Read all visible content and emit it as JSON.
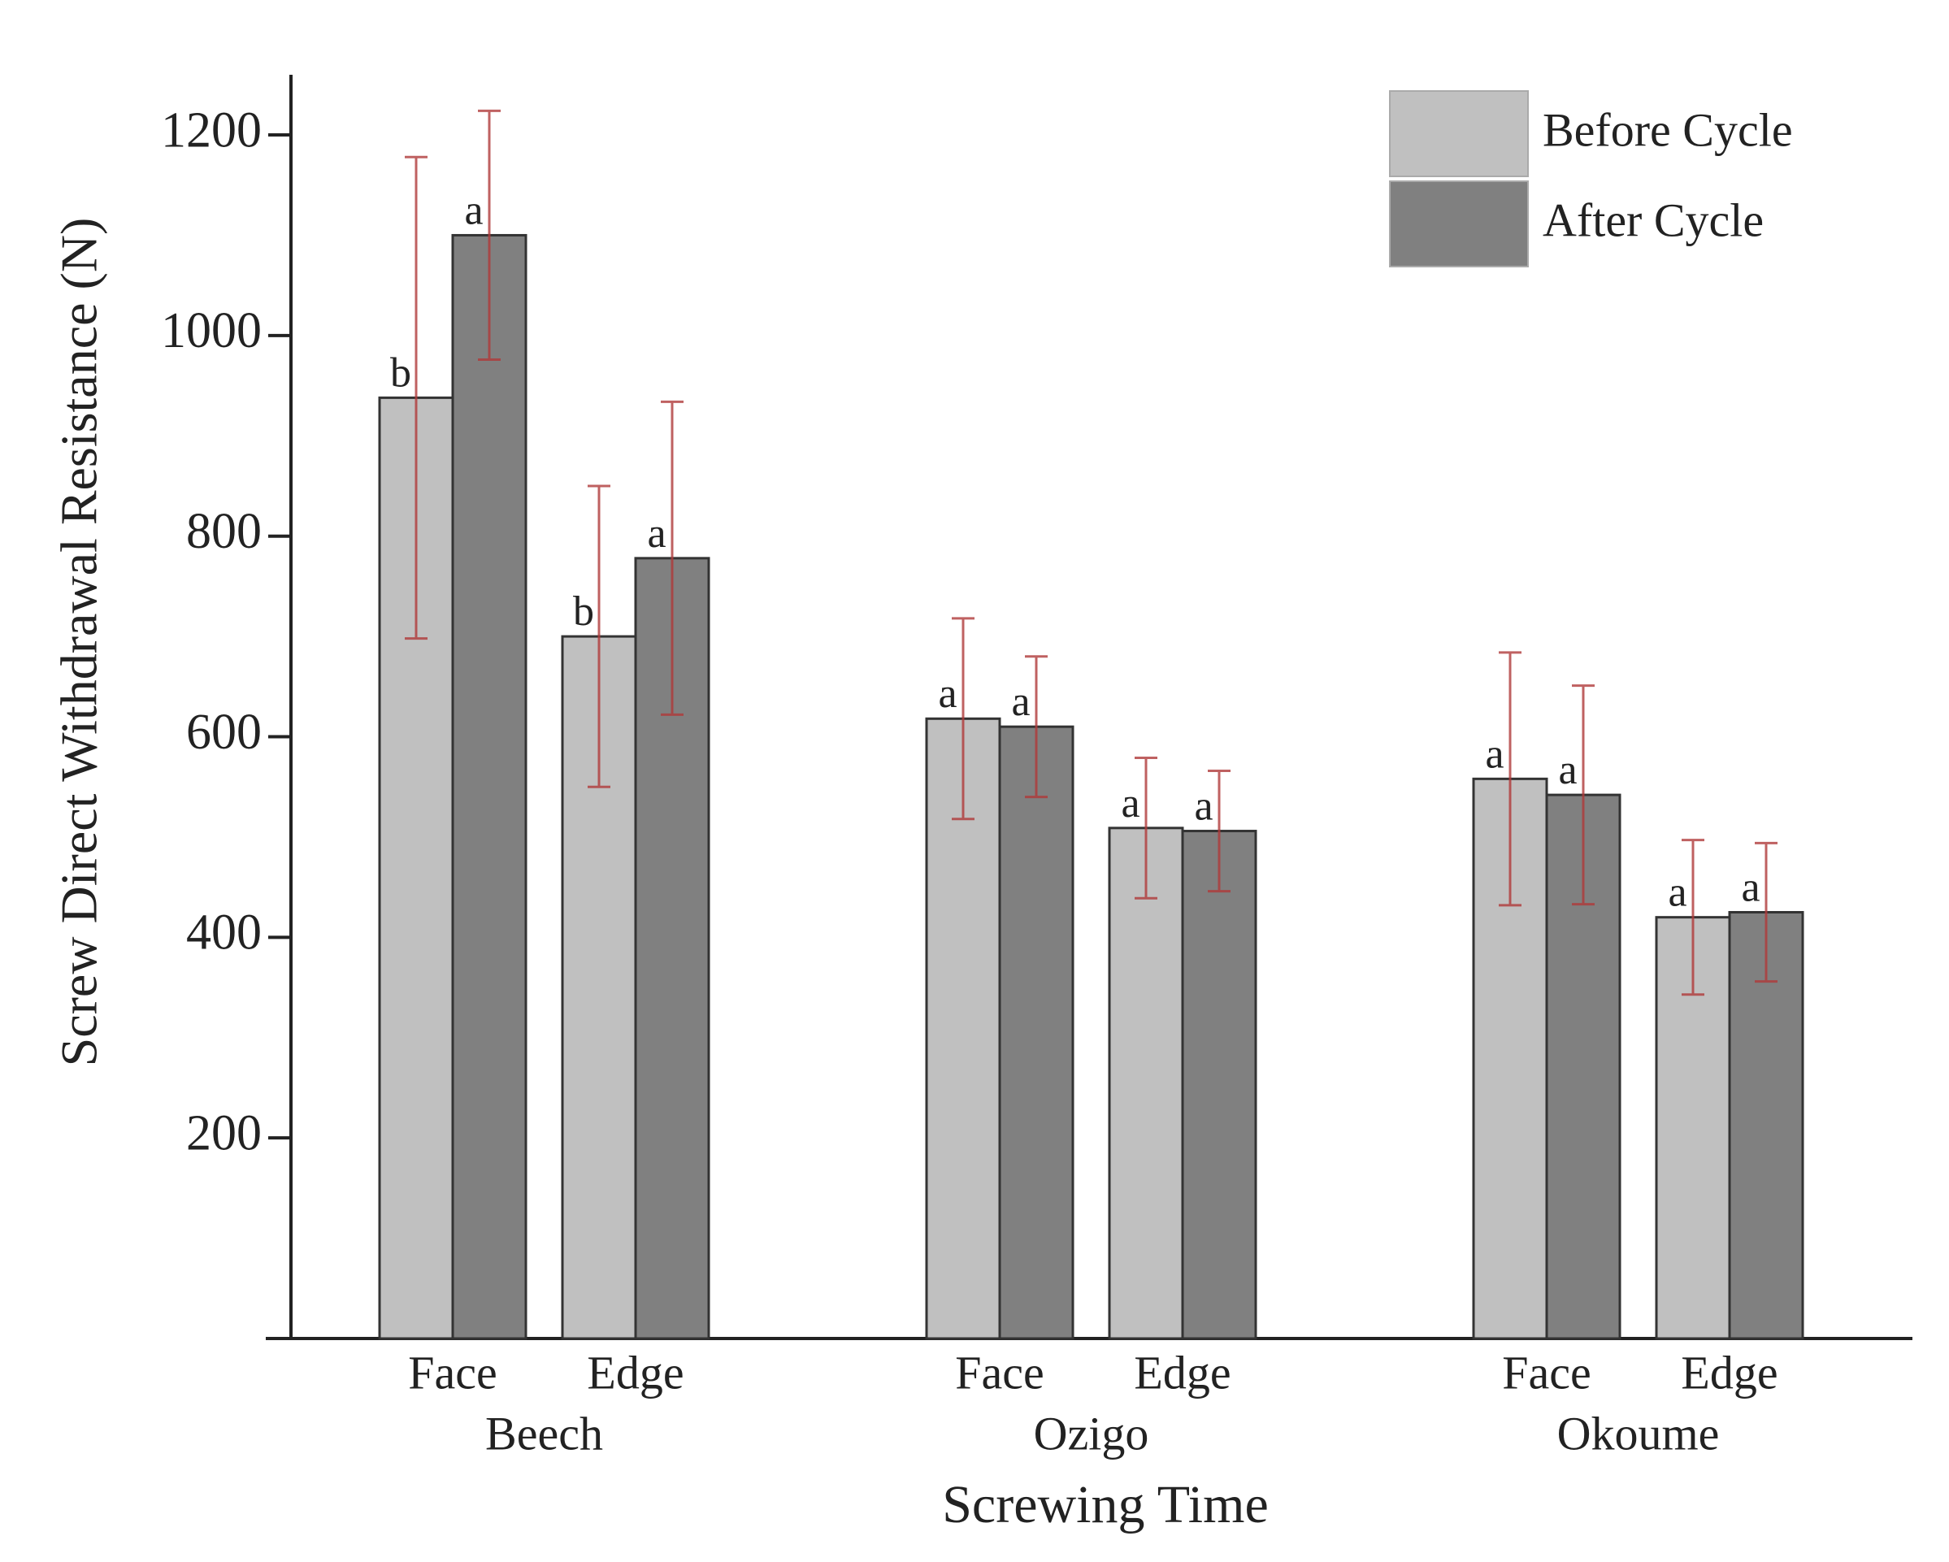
{
  "chart_data": {
    "type": "bar",
    "x_label": "Screwing Time",
    "y_label": "Screw Direct Withdrawal Resistance (N)",
    "categories": [
      "Face",
      "Edge",
      "Face",
      "Edge",
      "Face",
      "Edge"
    ],
    "groups": [
      "Beech",
      "Ozigo",
      "Okoume"
    ],
    "series": [
      {
        "name": "Before Cycle",
        "color": "#c0c0c0",
        "values": [
          938,
          700,
          618,
          509,
          558,
          420
        ],
        "errors": [
          240,
          150,
          100,
          70,
          126,
          77
        ],
        "letters": [
          "b",
          "b",
          "a",
          "a",
          "a",
          "a"
        ]
      },
      {
        "name": "After Cycle",
        "color": "#808080",
        "values": [
          1100,
          778,
          610,
          506,
          542,
          425
        ],
        "errors": [
          124,
          156,
          70,
          60,
          109,
          69
        ],
        "letters": [
          "a",
          "a",
          "a",
          "a",
          "a",
          "a"
        ]
      }
    ],
    "error_color": "#b03a3a",
    "ylim": [
      0,
      1260
    ],
    "yticks": [
      200,
      400,
      600,
      800,
      1000,
      1200
    ]
  }
}
